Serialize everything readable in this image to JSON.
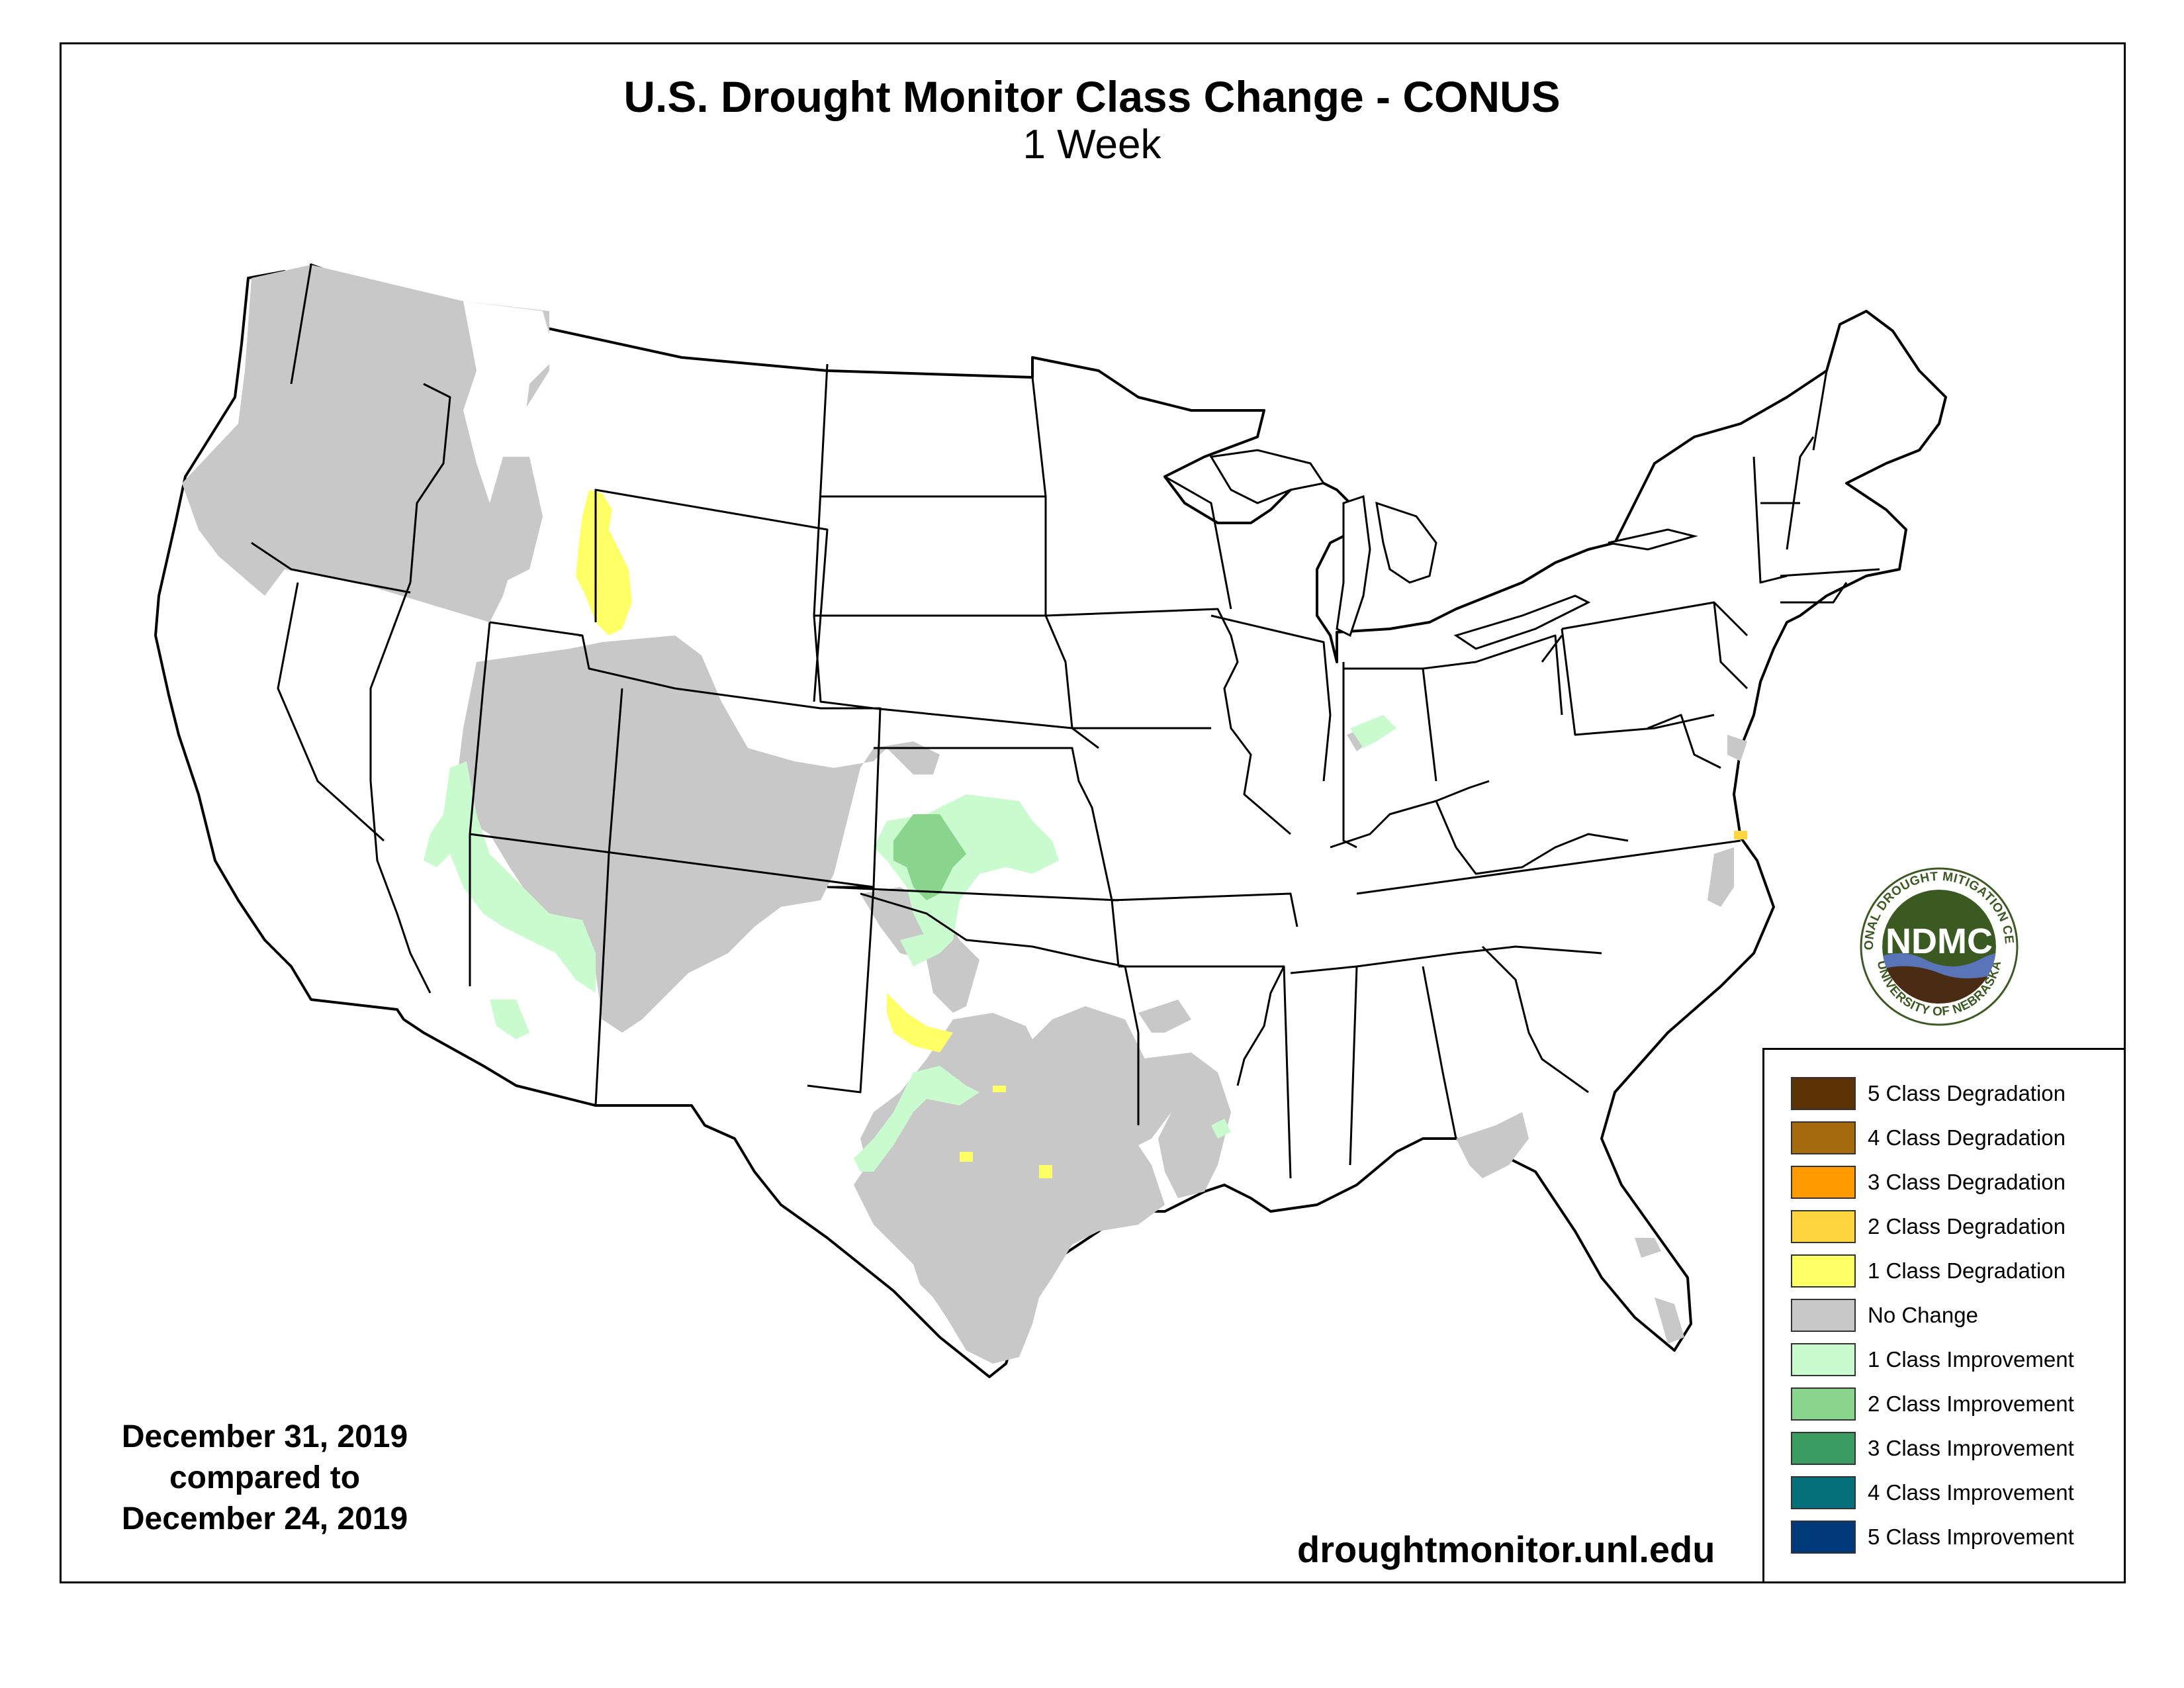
{
  "title": "U.S. Drought Monitor Class Change - CONUS",
  "subtitle": "1 Week",
  "dates": {
    "line1": "December 31, 2019",
    "line2": "compared to",
    "line3": "December 24, 2019"
  },
  "site": "droughtmonitor.unl.edu",
  "logo": {
    "text": "NDMC",
    "ring_top": "NATIONAL DROUGHT MITIGATION CENTER",
    "ring_bottom": "UNIVERSITY OF NEBRASKA",
    "colors": {
      "disk": "#3b5a22",
      "water": "#5a74b8",
      "soil": "#4a2c14"
    }
  },
  "legend": [
    {
      "label": "5 Class Degradation",
      "color": "#5c3306"
    },
    {
      "label": "4 Class Degradation",
      "color": "#a66b0e"
    },
    {
      "label": "3 Class Degradation",
      "color": "#ff9a00"
    },
    {
      "label": "2 Class Degradation",
      "color": "#ffd43c"
    },
    {
      "label": "1 Class Degradation",
      "color": "#ffff66"
    },
    {
      "label": "No Change",
      "color": "#c8c8c8"
    },
    {
      "label": "1 Class Improvement",
      "color": "#c9fbcf"
    },
    {
      "label": "2 Class Improvement",
      "color": "#8ad58e"
    },
    {
      "label": "3 Class Improvement",
      "color": "#3a9c60"
    },
    {
      "label": "4 Class Improvement",
      "color": "#056f7a"
    },
    {
      "label": "5 Class Improvement",
      "color": "#003a7a"
    }
  ],
  "map_colors": {
    "no_change": "#c8c8c8",
    "improve_1": "#c9fbcf",
    "improve_2": "#8ad58e",
    "degrade_1": "#ffff66",
    "degrade_2": "#ffd43c",
    "outline": "#000000",
    "land": "#ffffff"
  }
}
